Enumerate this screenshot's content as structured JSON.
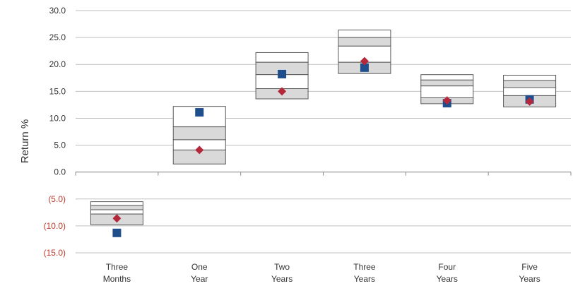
{
  "chart_data": {
    "type": "floating-bar-percentile",
    "title": "",
    "ylabel": "Return %",
    "ylim": [
      -15,
      30
    ],
    "yticks": [
      30,
      25,
      20,
      15,
      10,
      5,
      0,
      -5,
      -10,
      -15
    ],
    "ytick_labels": [
      "30.0",
      "25.0",
      "20.0",
      "15.0",
      "10.0",
      "5.0",
      "0.0",
      "(5.0)",
      "(10.0)",
      "(15.0)"
    ],
    "negative_label_color": "#c0392b",
    "positive_label_color": "#333333",
    "gridlines": true,
    "categories": [
      {
        "line1": "Three",
        "line2": "Months"
      },
      {
        "line1": "One",
        "line2": "Year"
      },
      {
        "line1": "Two",
        "line2": "Years"
      },
      {
        "line1": "Three",
        "line2": "Years"
      },
      {
        "line1": "Four",
        "line2": "Years"
      },
      {
        "line1": "Five",
        "line2": "Years"
      }
    ],
    "box_fill_colors": [
      "#ffffff",
      "#d9d9d9",
      "#ffffff",
      "#d9d9d9"
    ],
    "percentile_bands": [
      [
        -5.5,
        -6.2,
        -7.0,
        -7.8,
        -9.8
      ],
      [
        12.2,
        8.4,
        6.0,
        4.1,
        1.5
      ],
      [
        22.2,
        20.4,
        18.1,
        15.5,
        13.6
      ],
      [
        26.4,
        25.0,
        23.4,
        20.4,
        18.3
      ],
      [
        18.1,
        17.1,
        16.0,
        13.8,
        12.7
      ],
      [
        18.0,
        17.0,
        15.7,
        14.2,
        12.1
      ]
    ],
    "series": [
      {
        "marker": "square",
        "color": "#1f4e8c",
        "values": [
          -11.3,
          11.1,
          18.2,
          19.4,
          12.8,
          13.5
        ]
      },
      {
        "marker": "diamond",
        "color": "#b5283b",
        "values": [
          -8.6,
          4.1,
          15.0,
          20.6,
          13.3,
          13.1
        ]
      }
    ]
  }
}
